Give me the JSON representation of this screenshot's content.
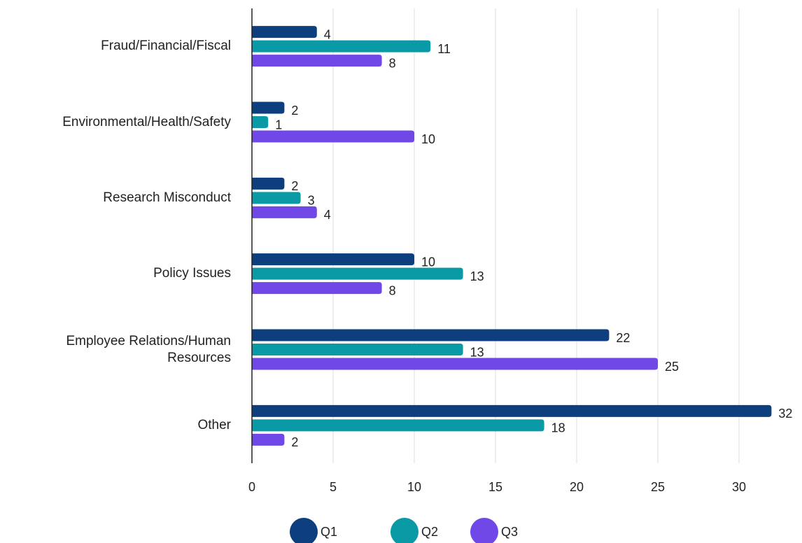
{
  "chart_data": {
    "type": "bar",
    "orientation": "horizontal",
    "categories": [
      "Fraud/Financial/Fiscal",
      "Environmental/Health/Safety",
      "Research Misconduct",
      "Policy Issues",
      "Employee Relations/Human Resources",
      "Other"
    ],
    "series": [
      {
        "name": "Q1",
        "color": "#0d3f7f",
        "values": [
          4,
          2,
          2,
          10,
          22,
          32
        ]
      },
      {
        "name": "Q2",
        "color": "#0a9aa6",
        "values": [
          11,
          1,
          3,
          13,
          13,
          18
        ]
      },
      {
        "name": "Q3",
        "color": "#7048e8",
        "values": [
          8,
          10,
          4,
          8,
          25,
          2
        ]
      }
    ],
    "xlim": [
      0,
      33
    ],
    "xticks": [
      0,
      5,
      10,
      15,
      20,
      25,
      30
    ],
    "grid": true,
    "legend": "bottom"
  }
}
